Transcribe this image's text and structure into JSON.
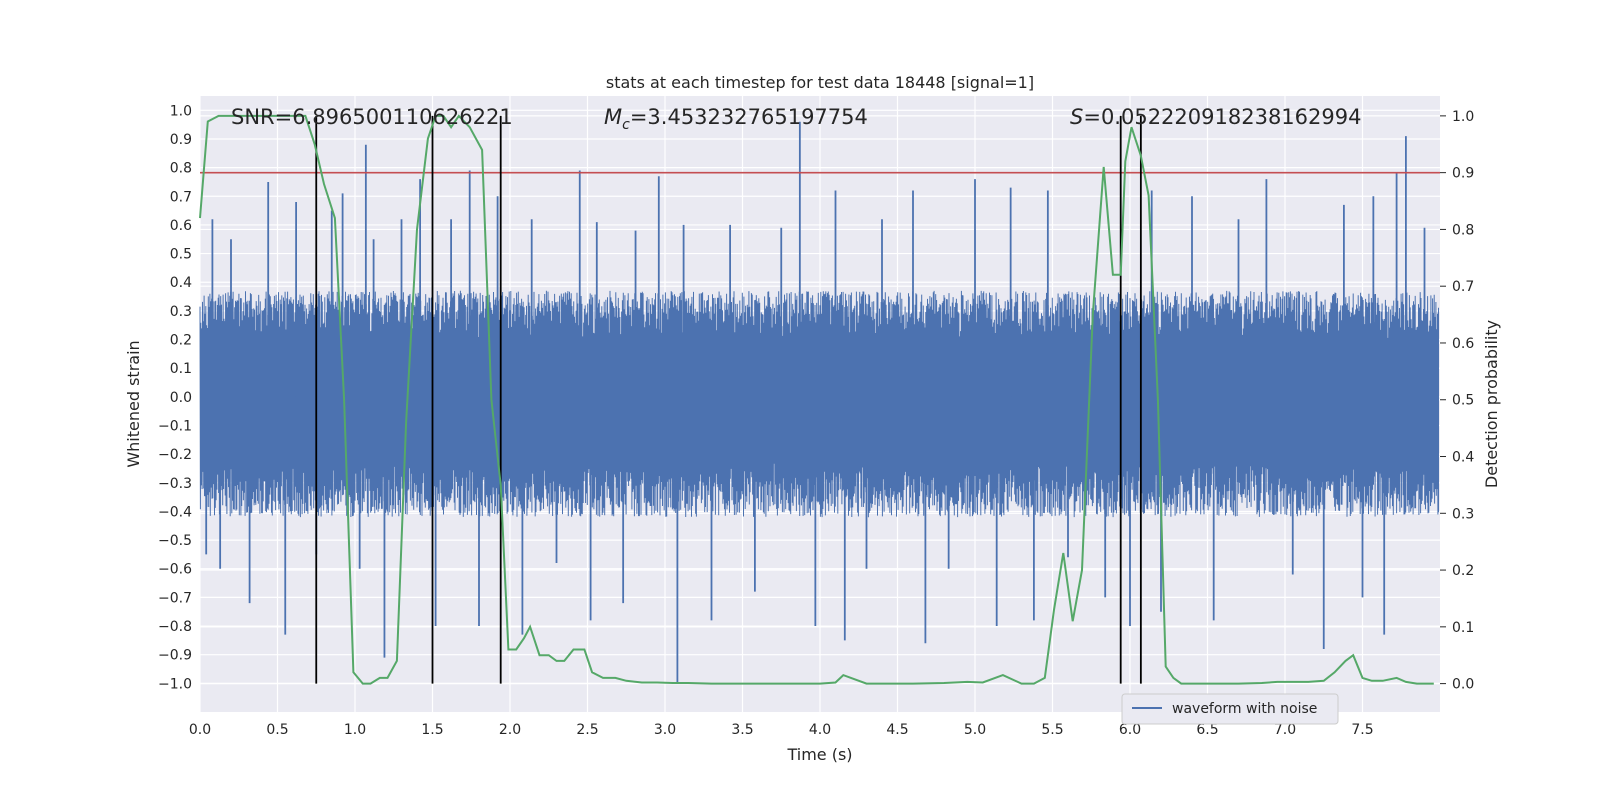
{
  "chart_data": {
    "type": "line",
    "title": "stats at each timestep for test data 18448 [signal=1]",
    "xlabel": "Time (s)",
    "ylabel": "Whitened strain",
    "y2label": "Detection probability",
    "xlim": [
      0.0,
      8.0
    ],
    "ylim": [
      -1.1,
      1.05
    ],
    "y2lim": [
      -0.05,
      1.035
    ],
    "xticks": [
      0.0,
      0.5,
      1.0,
      1.5,
      2.0,
      2.5,
      3.0,
      3.5,
      4.0,
      4.5,
      5.0,
      5.5,
      6.0,
      6.5,
      7.0,
      7.5
    ],
    "yticks": [
      -1.0,
      -0.9,
      -0.8,
      -0.7,
      -0.6,
      -0.5,
      -0.4,
      -0.3,
      -0.2,
      -0.1,
      0.0,
      0.1,
      0.2,
      0.3,
      0.4,
      0.5,
      0.6,
      0.7,
      0.8,
      0.9,
      1.0
    ],
    "y2ticks": [
      0.0,
      0.1,
      0.2,
      0.3,
      0.4,
      0.5,
      0.6,
      0.7,
      0.8,
      0.9,
      1.0
    ],
    "grid": true,
    "legend": {
      "placement": "lower-right",
      "entries": [
        "waveform with noise"
      ]
    },
    "annotations": {
      "snr": "SNR=6.896500110626221",
      "mc_symbol": "M",
      "mc_sub": "c",
      "mc_value": "=3.453232765197754",
      "s_symbol": "S",
      "s_value": "=0.052220918238162994"
    },
    "threshold": {
      "y2": 0.9,
      "color": "#c44e52"
    },
    "vertical_lines_x": [
      0.75,
      1.5,
      1.94,
      5.94,
      6.07
    ],
    "series": [
      {
        "name": "waveform with noise",
        "axis": "left",
        "color": "#4c72b0",
        "band": [
          -0.42,
          0.37
        ],
        "spikes": [
          [
            0.04,
            -0.55
          ],
          [
            0.08,
            0.62
          ],
          [
            0.13,
            -0.6
          ],
          [
            0.2,
            0.55
          ],
          [
            0.32,
            -0.72
          ],
          [
            0.44,
            0.75
          ],
          [
            0.55,
            -0.83
          ],
          [
            0.62,
            0.68
          ],
          [
            0.75,
            -0.55
          ],
          [
            0.85,
            0.65
          ],
          [
            0.92,
            0.71
          ],
          [
            1.03,
            -0.6
          ],
          [
            1.07,
            0.88
          ],
          [
            1.12,
            0.55
          ],
          [
            1.19,
            -0.91
          ],
          [
            1.3,
            0.62
          ],
          [
            1.42,
            0.76
          ],
          [
            1.52,
            -0.8
          ],
          [
            1.62,
            0.62
          ],
          [
            1.74,
            0.79
          ],
          [
            1.8,
            -0.8
          ],
          [
            1.92,
            0.7
          ],
          [
            2.08,
            -0.83
          ],
          [
            2.14,
            0.62
          ],
          [
            2.3,
            -0.58
          ],
          [
            2.45,
            0.79
          ],
          [
            2.52,
            -0.78
          ],
          [
            2.56,
            0.61
          ],
          [
            2.73,
            -0.72
          ],
          [
            2.81,
            0.58
          ],
          [
            2.96,
            0.77
          ],
          [
            3.08,
            -1.0
          ],
          [
            3.12,
            0.6
          ],
          [
            3.3,
            -0.78
          ],
          [
            3.42,
            0.6
          ],
          [
            3.58,
            -0.68
          ],
          [
            3.75,
            0.59
          ],
          [
            3.87,
            0.96
          ],
          [
            3.97,
            -0.8
          ],
          [
            4.1,
            0.72
          ],
          [
            4.16,
            -0.85
          ],
          [
            4.3,
            -0.6
          ],
          [
            4.4,
            0.62
          ],
          [
            4.6,
            0.72
          ],
          [
            4.68,
            -0.86
          ],
          [
            4.83,
            -0.6
          ],
          [
            5.0,
            0.76
          ],
          [
            5.14,
            -0.8
          ],
          [
            5.23,
            0.73
          ],
          [
            5.38,
            -0.78
          ],
          [
            5.47,
            0.72
          ],
          [
            5.6,
            -0.56
          ],
          [
            5.84,
            -0.7
          ],
          [
            6.0,
            -0.8
          ],
          [
            6.14,
            0.72
          ],
          [
            6.2,
            -0.75
          ],
          [
            6.4,
            0.7
          ],
          [
            6.54,
            -0.78
          ],
          [
            6.7,
            0.62
          ],
          [
            6.88,
            0.76
          ],
          [
            7.05,
            -0.62
          ],
          [
            7.25,
            -0.88
          ],
          [
            7.38,
            0.67
          ],
          [
            7.5,
            -0.7
          ],
          [
            7.57,
            0.7
          ],
          [
            7.64,
            -0.83
          ],
          [
            7.72,
            0.78
          ],
          [
            7.78,
            0.91
          ],
          [
            7.9,
            0.59
          ]
        ]
      },
      {
        "name": "",
        "axis": "right",
        "color": "#55a868",
        "x": [
          0.0,
          0.05,
          0.12,
          0.2,
          0.3,
          0.4,
          0.5,
          0.6,
          0.68,
          0.74,
          0.8,
          0.87,
          0.93,
          0.99,
          1.05,
          1.1,
          1.16,
          1.21,
          1.27,
          1.33,
          1.4,
          1.47,
          1.52,
          1.57,
          1.62,
          1.67,
          1.74,
          1.82,
          1.88,
          1.94,
          1.99,
          2.04,
          2.09,
          2.13,
          2.19,
          2.25,
          2.3,
          2.35,
          2.41,
          2.48,
          2.53,
          2.6,
          2.68,
          2.75,
          2.85,
          2.95,
          3.05,
          3.15,
          3.3,
          3.45,
          3.6,
          3.75,
          3.85,
          4.0,
          4.1,
          4.15,
          4.2,
          4.3,
          4.45,
          4.6,
          4.8,
          4.95,
          5.05,
          5.18,
          5.3,
          5.38,
          5.45,
          5.51,
          5.57,
          5.63,
          5.69,
          5.76,
          5.83,
          5.89,
          5.94,
          5.97,
          6.01,
          6.07,
          6.12,
          6.18,
          6.23,
          6.28,
          6.33,
          6.4,
          6.55,
          6.7,
          6.85,
          6.95,
          7.05,
          7.15,
          7.25,
          7.32,
          7.39,
          7.44,
          7.5,
          7.56,
          7.63,
          7.72,
          7.78,
          7.85,
          7.92,
          7.96
        ],
        "y": [
          0.82,
          0.99,
          1.0,
          1.0,
          1.0,
          1.0,
          1.0,
          1.0,
          1.0,
          0.95,
          0.88,
          0.82,
          0.5,
          0.02,
          0.0,
          0.0,
          0.01,
          0.01,
          0.04,
          0.46,
          0.8,
          0.96,
          1.0,
          1.0,
          0.98,
          1.0,
          0.98,
          0.94,
          0.5,
          0.35,
          0.06,
          0.06,
          0.08,
          0.1,
          0.05,
          0.05,
          0.04,
          0.04,
          0.06,
          0.06,
          0.02,
          0.01,
          0.01,
          0.005,
          0.002,
          0.002,
          0.001,
          0.001,
          0.0,
          0.0,
          0.0,
          0.0,
          0.0,
          0.0,
          0.002,
          0.015,
          0.01,
          0.0,
          0.0,
          0.0,
          0.001,
          0.003,
          0.002,
          0.015,
          0.0,
          0.0,
          0.01,
          0.13,
          0.23,
          0.11,
          0.2,
          0.65,
          0.91,
          0.72,
          0.72,
          0.92,
          0.98,
          0.93,
          0.86,
          0.5,
          0.03,
          0.01,
          0.0,
          0.0,
          0.0,
          0.0,
          0.001,
          0.003,
          0.003,
          0.003,
          0.005,
          0.02,
          0.04,
          0.05,
          0.01,
          0.005,
          0.005,
          0.01,
          0.003,
          0.0,
          0.0,
          0.0
        ]
      }
    ]
  }
}
